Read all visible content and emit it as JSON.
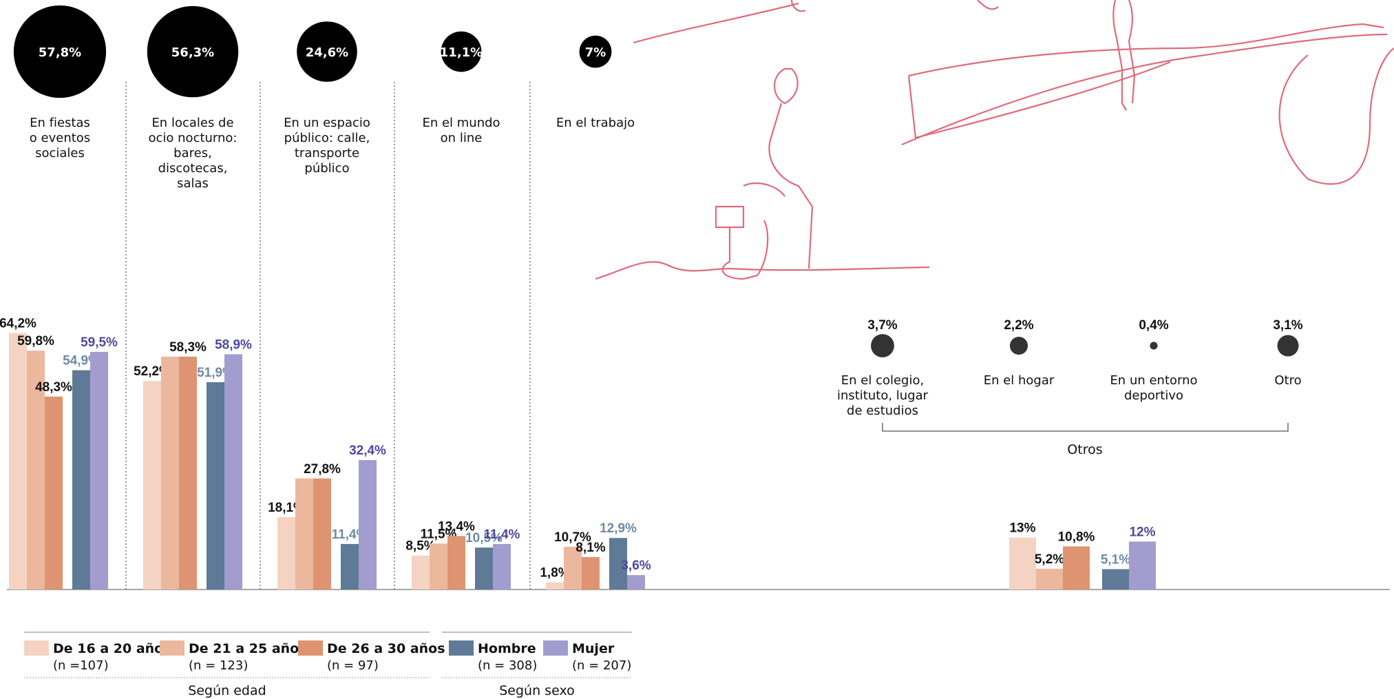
{
  "chart_data": {
    "type": "bar",
    "categories": [
      "En fiestas\no eventos\nsociales",
      "En locales de\nocio nocturno:\nbares,\ndiscotecas,\nsalas",
      "En un espacio\npúblico: calle,\ntransporte\npúblico",
      "En el mundo\non line",
      "En el trabajo",
      "Otros"
    ],
    "totals": {
      "values": [
        57.8,
        56.3,
        24.6,
        11.1,
        7
      ],
      "value_labels": [
        "57,8%",
        "56,3%",
        "24,6%",
        "11,1%",
        "7%"
      ]
    },
    "otros": {
      "categories": [
        "En el colegio,\ninstituto, lugar\nde estudios",
        "En el hogar",
        "En un entorno\ndeportivo",
        "Otro"
      ],
      "values": [
        3.7,
        2.2,
        0.4,
        3.1
      ],
      "value_labels": [
        "3,7%",
        "2,2%",
        "0,4%",
        "3,1%"
      ]
    },
    "series": [
      {
        "name": "De 16 a 20 años",
        "n_label": "(n =107)",
        "color": "#f4d3c3",
        "values": [
          64.2,
          52.2,
          18.1,
          8.5,
          1.8,
          13
        ],
        "value_labels": [
          "64,2%",
          "52,2%",
          "18,1%",
          "8,5%",
          "1,8%",
          "13%"
        ]
      },
      {
        "name": "De 21 a 25 años",
        "n_label": "(n = 123)",
        "color": "#ecb89d",
        "values": [
          59.8,
          58.3,
          27.8,
          11.5,
          10.7,
          5.2
        ],
        "value_labels": [
          "59,8%",
          null,
          null,
          "11,5%",
          "10,7%",
          "5,2%"
        ]
      },
      {
        "name": "De 26 a 30 años",
        "n_label": "(n = 97)",
        "color": "#de9470",
        "values": [
          48.3,
          58.3,
          27.8,
          13.4,
          8.1,
          10.8
        ],
        "value_labels": [
          "48,3%",
          "58,3%",
          "27,8%",
          "13,4%",
          "8,1%",
          "10,8%"
        ]
      },
      {
        "name": "Hombre",
        "n_label": "(n = 308)",
        "color": "#5f7a96",
        "values": [
          54.9,
          51.9,
          11.4,
          10.5,
          12.9,
          5.1
        ],
        "value_labels": [
          "54,9%",
          "51,9%",
          "11,4%",
          "10,5%",
          "12,9%",
          "5,1%"
        ]
      },
      {
        "name": "Mujer",
        "n_label": "(n = 207)",
        "color": "#a29ccf",
        "values": [
          59.5,
          58.9,
          32.4,
          11.4,
          3.6,
          12
        ],
        "value_labels": [
          "59,5%",
          "58,9%",
          "32,4%",
          "11,4%",
          "3,6%",
          "12%"
        ]
      }
    ],
    "legend_groups": [
      "Según edad",
      "Según sexo"
    ]
  }
}
